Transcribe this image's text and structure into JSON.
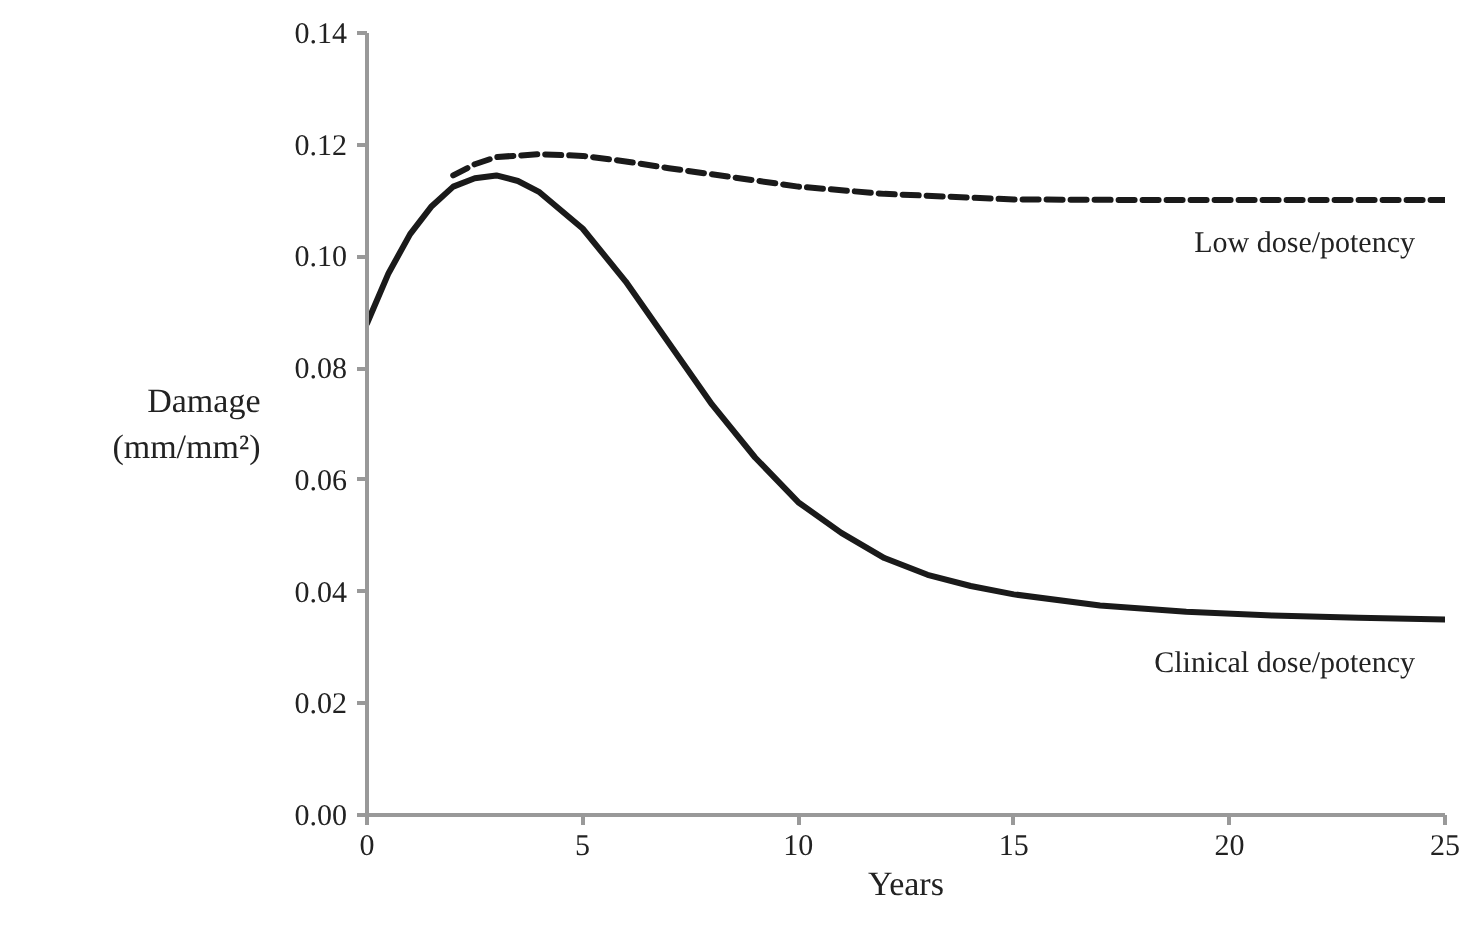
{
  "chart_data": {
    "type": "line",
    "xlabel": "Years",
    "ylabel": "Damage\n(mm/mm²)",
    "xlim": [
      0,
      25
    ],
    "xticks": [
      0,
      5,
      10,
      15,
      20,
      25
    ],
    "ylim": [
      0,
      0.14
    ],
    "yticks": [
      {
        "value": 0,
        "label": "0.00"
      },
      {
        "value": 0.02,
        "label": "0.02"
      },
      {
        "value": 0.04,
        "label": "0.04"
      },
      {
        "value": 0.06,
        "label": "0.06"
      },
      {
        "value": 0.08,
        "label": "0.08"
      },
      {
        "value": 0.1,
        "label": "0.10"
      },
      {
        "value": 0.12,
        "label": "0.12"
      },
      {
        "value": 0.14,
        "label": "0.14"
      }
    ],
    "grid": false,
    "legend": false,
    "series": [
      {
        "name": "Low dose/potency",
        "color": "#1a1a1a",
        "line_style": "dashed",
        "x": [
          2,
          2.5,
          3,
          4,
          5,
          6,
          7,
          8,
          10,
          12,
          15,
          18,
          21,
          25
        ],
        "values": [
          0.1145,
          0.1165,
          0.1178,
          0.1183,
          0.118,
          0.117,
          0.1158,
          0.1147,
          0.1125,
          0.1112,
          0.1102,
          0.1101,
          0.1101,
          0.1101
        ]
      },
      {
        "name": "Clinical dose/potency",
        "color": "#1a1a1a",
        "line_style": "solid",
        "x": [
          0,
          0.5,
          1,
          1.5,
          2,
          2.5,
          3,
          3.5,
          4,
          5,
          6,
          7,
          8,
          9,
          10,
          11,
          12,
          13,
          14,
          15,
          17,
          19,
          21,
          23,
          25
        ],
        "values": [
          0.088,
          0.097,
          0.104,
          0.109,
          0.1125,
          0.114,
          0.1145,
          0.1135,
          0.1115,
          0.105,
          0.0955,
          0.0845,
          0.0735,
          0.064,
          0.056,
          0.0505,
          0.046,
          0.043,
          0.041,
          0.0395,
          0.0375,
          0.0364,
          0.0357,
          0.0353,
          0.035
        ]
      }
    ]
  }
}
